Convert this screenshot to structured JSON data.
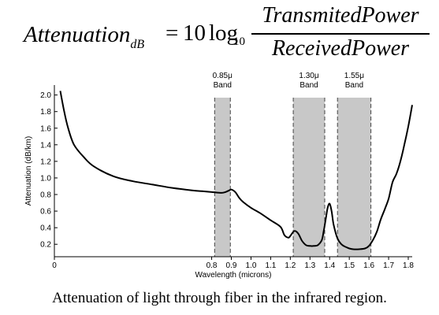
{
  "formula": {
    "lhs": "Attenuation",
    "lhs_subscript": "dB",
    "equals": "=",
    "coefficient": "10",
    "function": "log",
    "base": "10",
    "numerator": "TransmitedPower",
    "denominator": "ReceivedPower"
  },
  "caption": "Attenuation of light through fiber in the infrared region.",
  "colors": {
    "band_fill": "#c8c8c8",
    "band_edge": "#444444",
    "curve": "#000000",
    "axis": "#000000"
  },
  "chart_data": {
    "type": "line",
    "title": "",
    "xlabel": "Wavelength (microns)",
    "ylabel": "Attenuation (dB/km)",
    "xlim": [
      0,
      1.82
    ],
    "ylim": [
      0.05,
      2.12
    ],
    "x_ticks": [
      0,
      0.8,
      0.9,
      1.0,
      1.1,
      1.2,
      1.3,
      1.4,
      1.5,
      1.6,
      1.7,
      1.8
    ],
    "x_tick_labels": [
      "0",
      "0.8",
      "0.9",
      "1.0",
      "1.1",
      "1.2",
      "1.3",
      "1.4",
      "1.5",
      "1.6",
      "1.7",
      "1.8"
    ],
    "y_ticks": [
      0.2,
      0.4,
      0.6,
      0.8,
      1.0,
      1.2,
      1.4,
      1.6,
      1.8,
      2.0
    ],
    "y_tick_labels": [
      "0.2",
      "0.4",
      "0.6",
      "0.8",
      "1.0",
      "1.2",
      "1.4",
      "1.6",
      "1.8",
      "2.0"
    ],
    "grid": false,
    "bands": [
      {
        "label_line1": "0.85μ",
        "label_line2": "Band",
        "x_start": 0.815,
        "x_end": 0.895
      },
      {
        "label_line1": "1.30μ",
        "label_line2": "Band",
        "x_start": 1.215,
        "x_end": 1.375
      },
      {
        "label_line1": "1.55μ",
        "label_line2": "Band",
        "x_start": 1.44,
        "x_end": 1.61
      }
    ],
    "series": [
      {
        "x": [
          0.03,
          0.05,
          0.07,
          0.1,
          0.15,
          0.2,
          0.3,
          0.4,
          0.5,
          0.6,
          0.7,
          0.75,
          0.8,
          0.85,
          0.87,
          0.89,
          0.9,
          0.92,
          0.94,
          0.96,
          1.0,
          1.05,
          1.1,
          1.15,
          1.17,
          1.19,
          1.2,
          1.22,
          1.24,
          1.26,
          1.28,
          1.3,
          1.32,
          1.34,
          1.36,
          1.37,
          1.38,
          1.39,
          1.4,
          1.41,
          1.42,
          1.44,
          1.46,
          1.48,
          1.5,
          1.52,
          1.55,
          1.58,
          1.6,
          1.62,
          1.64,
          1.66,
          1.68,
          1.7,
          1.72,
          1.74,
          1.76,
          1.78,
          1.8,
          1.82
        ],
        "y": [
          2.05,
          1.8,
          1.6,
          1.4,
          1.25,
          1.14,
          1.02,
          0.96,
          0.92,
          0.88,
          0.85,
          0.84,
          0.83,
          0.82,
          0.83,
          0.85,
          0.86,
          0.83,
          0.76,
          0.71,
          0.64,
          0.57,
          0.49,
          0.41,
          0.31,
          0.28,
          0.3,
          0.36,
          0.33,
          0.24,
          0.19,
          0.18,
          0.18,
          0.19,
          0.25,
          0.36,
          0.5,
          0.64,
          0.69,
          0.6,
          0.44,
          0.27,
          0.2,
          0.17,
          0.15,
          0.14,
          0.14,
          0.15,
          0.18,
          0.25,
          0.35,
          0.5,
          0.62,
          0.75,
          0.95,
          1.05,
          1.2,
          1.4,
          1.62,
          1.88
        ]
      }
    ]
  }
}
